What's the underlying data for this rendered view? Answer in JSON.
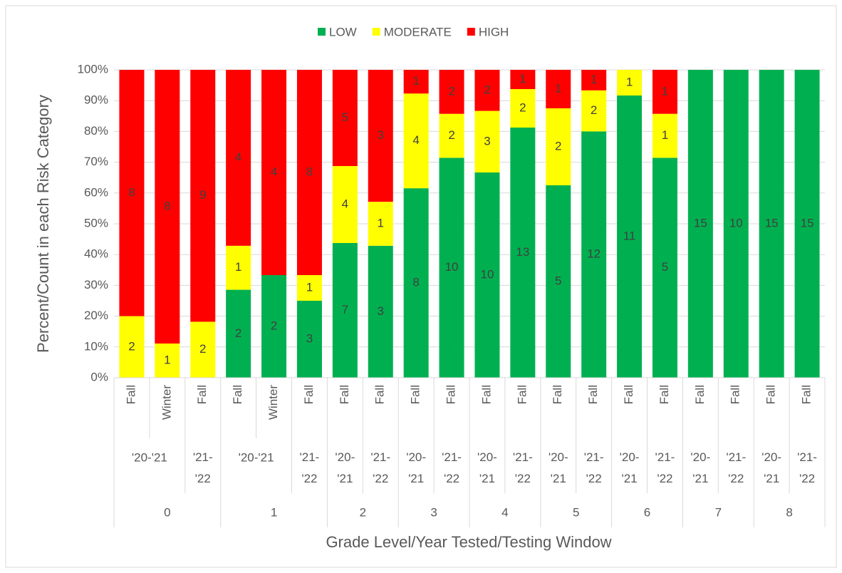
{
  "chart_data": {
    "type": "bar",
    "stacked": "percent",
    "x_label": "Grade Level/Year Tested/Testing Window",
    "y_label": "Percent/Count in each Risk Category",
    "legend": "top",
    "grid": true,
    "ylim": [
      0,
      100
    ],
    "yticks": [
      {
        "value": 0,
        "label": "0%"
      },
      {
        "value": 10,
        "label": "10%"
      },
      {
        "value": 20,
        "label": "20%"
      },
      {
        "value": 30,
        "label": "30%"
      },
      {
        "value": 40,
        "label": "40%"
      },
      {
        "value": 50,
        "label": "50%"
      },
      {
        "value": 60,
        "label": "60%"
      },
      {
        "value": 70,
        "label": "70%"
      },
      {
        "value": 80,
        "label": "80%"
      },
      {
        "value": 90,
        "label": "90%"
      },
      {
        "value": 100,
        "label": "100%"
      }
    ],
    "categories": [
      "Fall",
      "Winter",
      "Fall",
      "Fall",
      "Winter",
      "Fall",
      "Fall",
      "Fall",
      "Fall",
      "Fall",
      "Fall",
      "Fall",
      "Fall",
      "Fall",
      "Fall",
      "Fall",
      "Fall",
      "Fall",
      "Fall",
      "Fall"
    ],
    "years": [
      "'20-'21",
      "'20-'21",
      "'21-'22",
      "'20-'21",
      "'20-'21",
      "'21-'22",
      "'20-'21",
      "'21-'22",
      "'20-'21",
      "'21-'22",
      "'20-'21",
      "'21-'22",
      "'20-'21",
      "'21-'22",
      "'20-'21",
      "'21-'22",
      "'20-'21",
      "'21-'22",
      "'20-'21",
      "'21-'22"
    ],
    "grades": [
      "0",
      "0",
      "0",
      "1",
      "1",
      "1",
      "2",
      "2",
      "3",
      "3",
      "4",
      "4",
      "5",
      "5",
      "6",
      "6",
      "7",
      "7",
      "8",
      "8"
    ],
    "series": [
      {
        "name": "LOW",
        "color": "#00b050",
        "values": [
          0,
          0,
          0,
          2,
          2,
          3,
          7,
          3,
          8,
          10,
          10,
          13,
          5,
          12,
          11,
          5,
          15,
          10,
          15,
          15
        ]
      },
      {
        "name": "MODERATE",
        "color": "#ffff00",
        "values": [
          2,
          1,
          2,
          1,
          0,
          1,
          4,
          1,
          4,
          2,
          3,
          2,
          2,
          2,
          1,
          1,
          0,
          0,
          0,
          0
        ]
      },
      {
        "name": "HIGH",
        "color": "#ff0000",
        "values": [
          8,
          8,
          9,
          4,
          4,
          8,
          5,
          3,
          1,
          2,
          2,
          1,
          1,
          1,
          0,
          1,
          0,
          0,
          0,
          0
        ]
      }
    ]
  }
}
